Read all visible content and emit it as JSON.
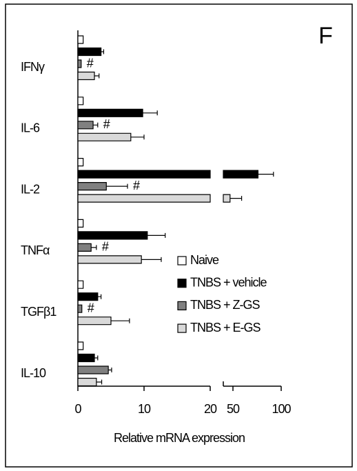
{
  "chart_data": {
    "type": "hbar",
    "panel_label": "F",
    "x_label": "Relative mRNA expression",
    "categories": [
      "IFNγ",
      "IL-6",
      "IL-2",
      "TNFα",
      "TGFβ1",
      "IL-10"
    ],
    "axis_segments": [
      {
        "xlim": [
          0,
          20
        ],
        "xticks": [
          0,
          10,
          20
        ]
      },
      {
        "xlim": [
          40,
          100
        ],
        "xticks": [
          50,
          100
        ]
      }
    ],
    "series": [
      {
        "name": "Naive",
        "color": "#ffffff",
        "values": [
          0.8,
          0.8,
          0.8,
          0.8,
          0.8,
          0.8
        ],
        "errors": [
          null,
          null,
          null,
          null,
          null,
          null
        ]
      },
      {
        "name": "TNBS + vehicle",
        "color": "#000000",
        "values": [
          3.5,
          9.8,
          76,
          10.5,
          3,
          2.5
        ],
        "errors": [
          0.4,
          2.2,
          16,
          2.7,
          0.5,
          0.5
        ]
      },
      {
        "name": "TNBS + Z-GS",
        "color": "#808080",
        "values": [
          0.5,
          2.3,
          4.3,
          2,
          0.6,
          4.6
        ],
        "errors": [
          null,
          0.7,
          3.2,
          0.8,
          null,
          0.5
        ]
      },
      {
        "name": "TNBS + E-GS",
        "color": "#d9d9d9",
        "values": [
          2.5,
          8,
          47,
          9.6,
          5,
          2.8
        ],
        "errors": [
          0.7,
          2,
          12,
          3,
          2.8,
          0.8
        ]
      }
    ],
    "annotations": [
      {
        "text": "#",
        "category": "IFNγ",
        "series": "TNBS + Z-GS"
      },
      {
        "text": "#",
        "category": "IL-6",
        "series": "TNBS + Z-GS"
      },
      {
        "text": "#",
        "category": "IL-2",
        "series": "TNBS + Z-GS"
      },
      {
        "text": "#",
        "category": "TNFα",
        "series": "TNBS + Z-GS"
      },
      {
        "text": "#",
        "category": "TGFβ1",
        "series": "TNBS + Z-GS"
      }
    ]
  }
}
